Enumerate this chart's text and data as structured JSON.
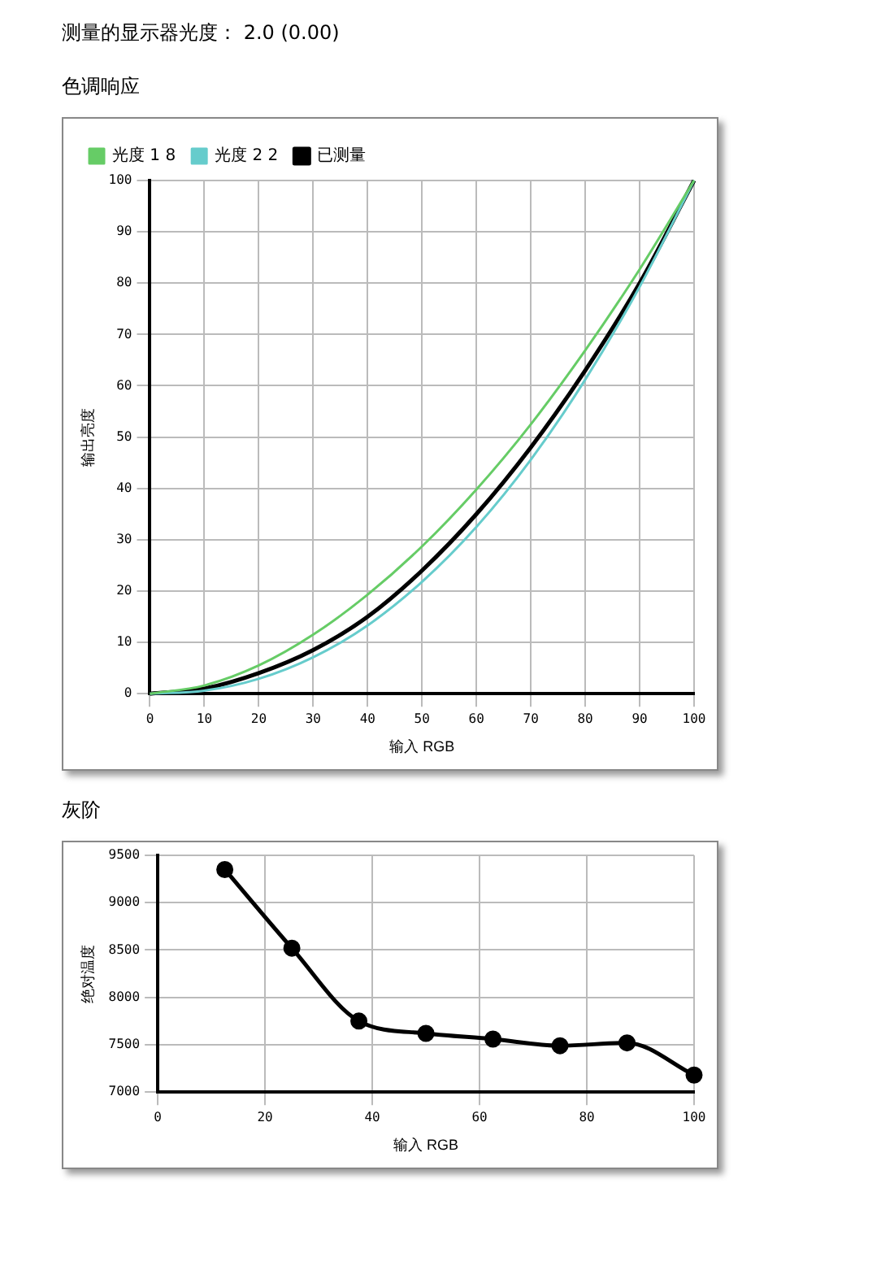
{
  "chart_data": [
    {
      "type": "line",
      "title": "色调响应",
      "annotations": [
        "测量的显示器光度： 2.0 (0.00)"
      ],
      "xlabel": "输入 RGB",
      "ylabel": "输出亮度",
      "x": [
        0,
        10,
        20,
        30,
        40,
        50,
        60,
        70,
        80,
        90,
        100
      ],
      "series": [
        {
          "name": "光度 1 8",
          "color": "#66cc66",
          "values": [
            0,
            1.6,
            5.5,
            11.5,
            19.3,
            28.7,
            39.8,
            52.5,
            66.9,
            82.7,
            100
          ]
        },
        {
          "name": "光度 2 2",
          "color": "#66cccc",
          "values": [
            0,
            0.6,
            2.9,
            7.1,
            13.3,
            21.8,
            32.5,
            45.6,
            61.2,
            79.3,
            100
          ]
        },
        {
          "name": "已测量",
          "color": "#000000",
          "values": [
            0,
            1,
            4,
            8.5,
            15,
            24,
            35,
            48,
            63,
            80,
            100
          ]
        }
      ],
      "xlim": [
        0,
        100
      ],
      "xticks": [
        0,
        10,
        20,
        30,
        40,
        50,
        60,
        70,
        80,
        90,
        100
      ],
      "ylim": [
        0,
        100
      ],
      "yticks": [
        0,
        10,
        20,
        30,
        40,
        50,
        60,
        70,
        80,
        90,
        100
      ],
      "grid": true,
      "legend": "top left",
      "marker": "none",
      "line_style": "solid"
    },
    {
      "type": "line",
      "title": "灰阶",
      "xlabel": "输入 RGB",
      "ylabel": "绝对温度",
      "x": [
        12.5,
        25,
        37.5,
        50,
        62.5,
        75,
        87.5,
        100
      ],
      "series": [
        {
          "color": "#000000",
          "values": [
            9350,
            8520,
            7750,
            7620,
            7560,
            7490,
            7520,
            7180
          ]
        }
      ],
      "xlim": [
        0,
        100
      ],
      "xticks": [
        0,
        20,
        40,
        60,
        80,
        100
      ],
      "ylim": [
        7000,
        9500
      ],
      "yticks": [
        7000,
        7500,
        8000,
        8500,
        9000,
        9500
      ],
      "grid": true,
      "legend": false,
      "marker": "circle",
      "line_style": "solid"
    }
  ]
}
